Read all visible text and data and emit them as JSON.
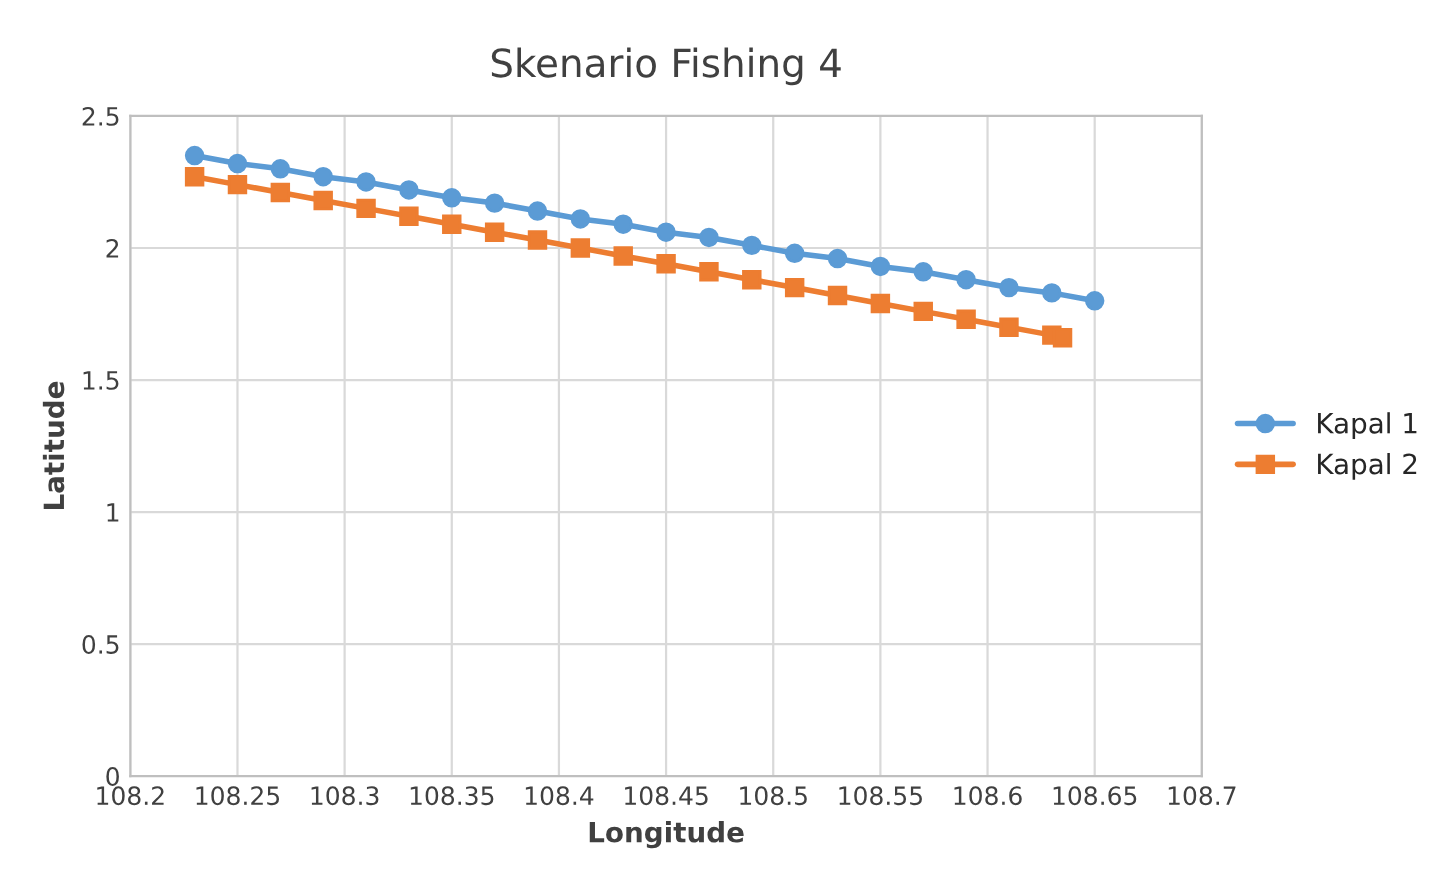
{
  "chart_data": {
    "type": "line",
    "title": "Skenario Fishing 4",
    "xlabel": "Longitude",
    "ylabel": "Latitude",
    "xlim": [
      108.2,
      108.7
    ],
    "xticks": [
      108.2,
      108.25,
      108.3,
      108.35,
      108.4,
      108.45,
      108.5,
      108.55,
      108.6,
      108.65,
      108.7
    ],
    "ylim": [
      0,
      2.5
    ],
    "yticks": [
      0,
      0.5,
      1,
      1.5,
      2,
      2.5
    ],
    "grid": true,
    "legend": "right",
    "series": [
      {
        "name": "Kapal 1",
        "color": "#5b9bd5",
        "marker": "circle",
        "x": [
          108.23,
          108.25,
          108.27,
          108.29,
          108.31,
          108.33,
          108.35,
          108.37,
          108.39,
          108.41,
          108.43,
          108.45,
          108.47,
          108.49,
          108.51,
          108.53,
          108.55,
          108.57,
          108.59,
          108.61,
          108.63,
          108.65
        ],
        "values": [
          2.35,
          2.32,
          2.3,
          2.27,
          2.25,
          2.22,
          2.19,
          2.17,
          2.14,
          2.11,
          2.09,
          2.06,
          2.04,
          2.01,
          1.98,
          1.96,
          1.93,
          1.91,
          1.88,
          1.85,
          1.83,
          1.8
        ]
      },
      {
        "name": "Kapal 2",
        "color": "#ed7d31",
        "marker": "square",
        "x": [
          108.23,
          108.25,
          108.27,
          108.29,
          108.31,
          108.33,
          108.35,
          108.37,
          108.39,
          108.41,
          108.43,
          108.45,
          108.47,
          108.49,
          108.51,
          108.53,
          108.55,
          108.57,
          108.59,
          108.61,
          108.63,
          108.635
        ],
        "values": [
          2.27,
          2.24,
          2.21,
          2.18,
          2.15,
          2.12,
          2.09,
          2.06,
          2.03,
          2.0,
          1.97,
          1.94,
          1.91,
          1.88,
          1.85,
          1.82,
          1.79,
          1.76,
          1.73,
          1.7,
          1.67,
          1.66
        ]
      }
    ]
  }
}
